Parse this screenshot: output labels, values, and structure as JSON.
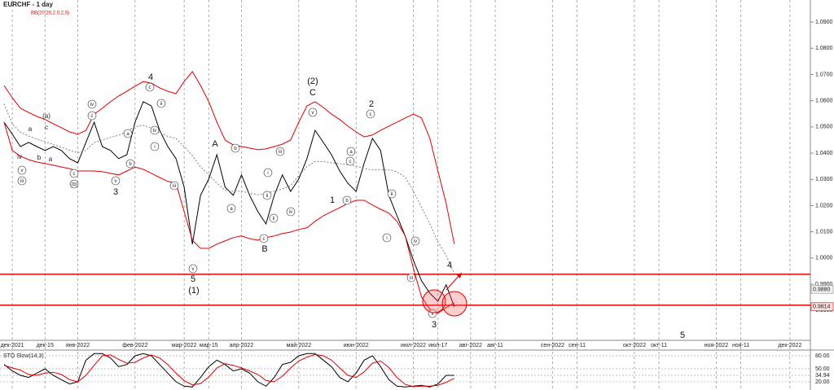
{
  "chart_data": {
    "type": "line",
    "title": "EURCHF - 1 day",
    "indicator": "BB(20,20,2.0,2,0)",
    "categories": [
      null,
      "дек-2021",
      null,
      null,
      null,
      "дек-15",
      null,
      null,
      null,
      "янв-2022",
      null,
      null,
      null,
      null,
      null,
      null,
      "фев-2022",
      null,
      null,
      null,
      null,
      null,
      "мар-2022",
      null,
      null,
      "мар-15",
      null,
      null,
      null,
      "апр-2022",
      null,
      null,
      null,
      null,
      null,
      null,
      "май-2022",
      null,
      null,
      null,
      null,
      null,
      null,
      "июн-2022",
      null,
      null,
      null,
      null,
      null,
      null,
      "июл-2022",
      null,
      null,
      "июл-17",
      null,
      null,
      null,
      "авг-2022",
      null,
      null,
      "авг-11",
      null,
      null,
      null,
      null,
      null,
      null,
      "сен-2022",
      null,
      null,
      "сен-11",
      null,
      null,
      null,
      null,
      null,
      null,
      "окт-2022",
      null,
      null,
      "окт-11",
      null,
      null,
      null,
      null,
      null,
      null,
      "ноя-2022",
      null,
      null,
      "ноя-11",
      null,
      null,
      null,
      null,
      null,
      "дек-2022",
      null,
      null
    ],
    "ylim": [
      0.9686,
      1.0984
    ],
    "yticks": [
      {
        "value": 1.09,
        "label": "1.0900"
      },
      {
        "value": 1.08,
        "label": "1.0800"
      },
      {
        "value": 1.07,
        "label": "1.0700"
      },
      {
        "value": 1.06,
        "label": "1.0600"
      },
      {
        "value": 1.05,
        "label": "1.0500"
      },
      {
        "value": 1.04,
        "label": "1.0400"
      },
      {
        "value": 1.03,
        "label": "1.0300"
      },
      {
        "value": 1.02,
        "label": "1.0200"
      },
      {
        "value": 1.01,
        "label": "1.0100"
      },
      {
        "value": 1.0,
        "label": "1.0000"
      },
      {
        "value": 0.99,
        "label": "0.9900"
      },
      {
        "value": 0.98,
        "label": "0.9800"
      }
    ],
    "grid": false,
    "series": [
      {
        "color": "#000000",
        "values": [
          1.0518,
          1.0472,
          1.0425,
          1.0441,
          1.0425,
          1.041,
          1.0425,
          1.041,
          1.0379,
          1.0363,
          1.0441,
          1.0518,
          1.0425,
          1.041,
          1.0379,
          1.0394,
          1.0518,
          1.0596,
          1.058,
          1.0487,
          1.0425,
          1.0379,
          1.027,
          1.0053,
          1.0239,
          1.0301,
          1.0394,
          1.027,
          1.0239,
          1.0317,
          1.0239,
          1.0177,
          1.013,
          1.0239,
          1.0317,
          1.0254,
          1.0301,
          1.0379,
          1.0487,
          1.0441,
          1.0394,
          1.0332,
          1.0285,
          1.0254,
          1.0363,
          1.0456,
          1.041,
          1.0239,
          1.0161,
          1.0084,
          0.9991,
          0.9913,
          0.9866,
          0.9835,
          0.9898,
          0.9814,
          null,
          null,
          null,
          null,
          null,
          null,
          null,
          null,
          null,
          null,
          null,
          null,
          null,
          null,
          null,
          null,
          null,
          null,
          null,
          null,
          null,
          null,
          null,
          null,
          null,
          null,
          null,
          null,
          null,
          null,
          null,
          null,
          null,
          null,
          null,
          null,
          null,
          null,
          null,
          null,
          null,
          null,
          null
        ]
      },
      {
        "color": "#e00000",
        "values": [
          1.0658,
          1.0611,
          1.0571,
          1.0555,
          1.054,
          1.0528,
          1.0512,
          1.0497,
          1.0481,
          1.0472,
          1.0487,
          1.0549,
          1.0571,
          1.0596,
          1.0618,
          1.0636,
          1.0655,
          1.0673,
          1.0667,
          1.0649,
          1.0636,
          1.0627,
          1.0673,
          1.0711,
          1.0658,
          1.0596,
          1.0518,
          1.045,
          1.0431,
          1.0425,
          1.0419,
          1.0413,
          1.0416,
          1.0425,
          1.0434,
          1.045,
          1.0518,
          1.058,
          1.0596,
          1.0574,
          1.0549,
          1.0528,
          1.0503,
          1.0481,
          1.0462,
          1.0469,
          1.0487,
          1.0503,
          1.0518,
          1.0534,
          1.0549,
          1.0534,
          1.0456,
          1.0332,
          1.0208,
          1.0053,
          null,
          null,
          null,
          null,
          null,
          null,
          null,
          null,
          null,
          null,
          null,
          null,
          null,
          null,
          null,
          null,
          null,
          null,
          null,
          null,
          null,
          null,
          null,
          null,
          null,
          null,
          null,
          null,
          null,
          null,
          null,
          null,
          null,
          null,
          null,
          null,
          null,
          null,
          null,
          null,
          null,
          null,
          null
        ]
      },
      {
        "color": "#808080",
        "dashed": true,
        "values": [
          1.0588,
          1.0511,
          1.048,
          1.0465,
          1.0453,
          1.0444,
          1.0433,
          1.0422,
          1.0411,
          1.0402,
          1.041,
          1.0441,
          1.045,
          1.046,
          1.0468,
          1.0484,
          1.0501,
          1.0506,
          1.0495,
          1.0478,
          1.0464,
          1.0456,
          1.0425,
          1.039,
          1.0348,
          1.0317,
          1.0286,
          1.0258,
          1.0255,
          1.0255,
          1.0247,
          1.0241,
          1.0247,
          1.0255,
          1.0264,
          1.0275,
          1.0314,
          1.0348,
          1.0368,
          1.0368,
          1.0363,
          1.036,
          1.0356,
          1.0351,
          1.0341,
          1.0336,
          1.0337,
          1.0337,
          1.0329,
          1.0309,
          1.0255,
          1.0193,
          1.0131,
          1.0061,
          1.001,
          0.9941,
          null,
          null,
          null,
          null,
          null,
          null,
          null,
          null,
          null,
          null,
          null,
          null,
          null,
          null,
          null,
          null,
          null,
          null,
          null,
          null,
          null,
          null,
          null,
          null,
          null,
          null,
          null,
          null,
          null,
          null,
          null,
          null,
          null,
          null,
          null,
          null,
          null,
          null,
          null,
          null,
          null,
          null,
          null
        ]
      },
      {
        "color": "#e00000",
        "values": [
          1.0518,
          1.041,
          1.0388,
          1.0375,
          1.0366,
          1.036,
          1.0354,
          1.0347,
          1.0341,
          1.0332,
          1.0332,
          1.0332,
          1.0329,
          1.0323,
          1.0317,
          1.0332,
          1.0347,
          1.0338,
          1.0323,
          1.0307,
          1.0292,
          1.0285,
          1.0177,
          1.0068,
          1.0037,
          1.0037,
          1.0053,
          1.0065,
          1.0078,
          1.0084,
          1.0074,
          1.0068,
          1.0078,
          1.0084,
          1.0093,
          1.0099,
          1.0109,
          1.0115,
          1.014,
          1.0161,
          1.0177,
          1.0192,
          1.0208,
          1.022,
          1.022,
          1.0202,
          1.0186,
          1.0171,
          1.014,
          1.0084,
          0.996,
          0.9851,
          0.9805,
          0.9789,
          0.9811,
          0.9829,
          null,
          null,
          null,
          null,
          null,
          null,
          null,
          null,
          null,
          null,
          null,
          null,
          null,
          null,
          null,
          null,
          null,
          null,
          null,
          null,
          null,
          null,
          null,
          null,
          null,
          null,
          null,
          null,
          null,
          null,
          null,
          null,
          null,
          null,
          null,
          null,
          null,
          null,
          null,
          null,
          null,
          null,
          null
        ]
      }
    ],
    "levels": [
      0.9938,
      0.982
    ],
    "level_color": "#e00000",
    "price_tags": [
      {
        "value": 0.988,
        "label": "0.9880"
      },
      {
        "value": 0.9814,
        "label": "0.9814"
      }
    ],
    "wave_labels": [
      "4",
      "3",
      "5",
      "(1)",
      "A",
      "B",
      "(2)",
      "C",
      "2",
      "1",
      "3",
      "4",
      "5",
      "(a)",
      "c",
      "a",
      "iv",
      "b",
      "a"
    ],
    "circled_labels": [
      "iv",
      "c",
      "v",
      "iii",
      "(b)",
      "c",
      "v",
      "b",
      "a",
      "c",
      "ii",
      "iv",
      "i",
      "iii",
      "v",
      "b",
      "a",
      "i",
      "ii",
      "c",
      "iii",
      "iv",
      "ii",
      "v",
      "a",
      "c",
      "b",
      "c",
      "ii",
      "i",
      "iv",
      "iii",
      "v"
    ],
    "stochastic": {
      "title": "STO Slow(14,3)",
      "ylim": [
        3,
        89.4
      ],
      "yticks": [
        {
          "value": 80,
          "label": "80.00"
        },
        {
          "value": 50,
          "label": "50.00"
        },
        34.94,
        {
          "value": 20,
          "label": "20.00"
        }
      ],
      "series": [
        {
          "color": "#000000",
          "values": [
            60,
            45,
            35,
            30,
            40,
            50,
            35,
            25,
            15,
            20,
            70,
            85,
            85,
            75,
            55,
            60,
            80,
            85,
            80,
            60,
            40,
            20,
            10,
            8,
            30,
            55,
            70,
            60,
            45,
            50,
            40,
            20,
            10,
            30,
            60,
            65,
            80,
            85,
            85,
            70,
            55,
            30,
            20,
            40,
            70,
            80,
            55,
            25,
            10,
            8,
            10,
            12,
            8,
            15,
            35,
            34.94,
            null,
            null,
            null,
            null,
            null,
            null,
            null,
            null,
            null,
            null,
            null,
            null,
            null,
            null,
            null,
            null,
            null,
            null,
            null,
            null,
            null,
            null,
            null,
            null,
            null,
            null,
            null,
            null,
            null,
            null,
            null,
            null,
            null,
            null,
            null,
            null,
            null,
            null,
            null,
            null,
            null,
            null,
            null
          ]
        },
        {
          "color": "#e00000",
          "values": [
            58,
            52,
            47,
            37,
            35,
            40,
            42,
            37,
            25,
            20,
            35,
            58,
            80,
            82,
            72,
            63,
            65,
            75,
            82,
            75,
            60,
            40,
            23,
            13,
            16,
            31,
            52,
            62,
            58,
            52,
            45,
            37,
            23,
            20,
            33,
            52,
            68,
            77,
            83,
            80,
            70,
            52,
            35,
            30,
            43,
            63,
            68,
            53,
            30,
            14,
            9,
            10,
            10,
            12,
            19,
            28,
            null,
            null,
            null,
            null,
            null,
            null,
            null,
            null,
            null,
            null,
            null,
            null,
            null,
            null,
            null,
            null,
            null,
            null,
            null,
            null,
            null,
            null,
            null,
            null,
            null,
            null,
            null,
            null,
            null,
            null,
            null,
            null,
            null,
            null,
            null,
            null,
            null,
            null,
            null,
            null,
            null,
            null,
            null
          ]
        }
      ]
    }
  }
}
